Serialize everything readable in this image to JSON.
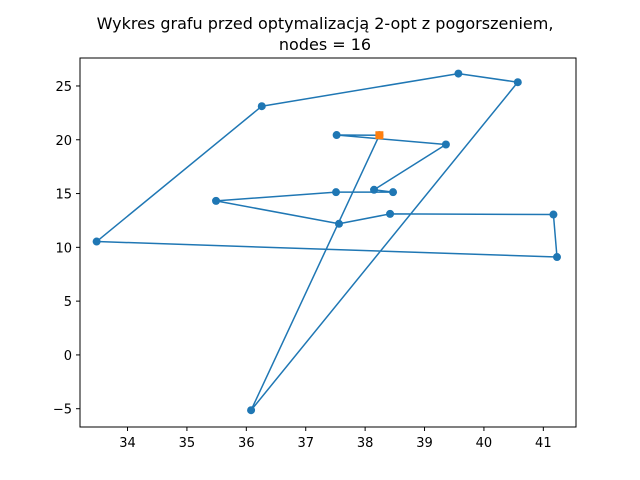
{
  "chart_data": {
    "type": "line",
    "title": "Wykres grafu przed optymalizacją 2-opt z pogorszeniem,",
    "subtitle": "nodes = 16",
    "xlabel": "",
    "ylabel": "",
    "xlim": [
      33.2,
      41.55
    ],
    "ylim": [
      -6.7,
      27.6
    ],
    "xticks": [
      34,
      35,
      36,
      37,
      38,
      39,
      40,
      41
    ],
    "yticks": [
      -5,
      0,
      5,
      10,
      15,
      20,
      25
    ],
    "grid": false,
    "series": [
      {
        "color": "#1f77b4",
        "marker": "circle",
        "path": [
          [
            38.24,
            20.42
          ],
          [
            36.08,
            -5.14
          ],
          [
            40.57,
            25.35
          ],
          [
            39.57,
            26.15
          ],
          [
            36.26,
            23.12
          ],
          [
            33.48,
            10.54
          ],
          [
            41.23,
            9.1
          ],
          [
            41.17,
            13.05
          ],
          [
            38.42,
            13.11
          ],
          [
            37.56,
            12.19
          ],
          [
            35.49,
            14.32
          ],
          [
            37.51,
            15.13
          ],
          [
            38.47,
            15.13
          ],
          [
            38.15,
            15.35
          ],
          [
            39.36,
            19.56
          ],
          [
            37.52,
            20.44
          ],
          [
            38.24,
            20.42
          ]
        ]
      }
    ],
    "start_point": {
      "x": 38.24,
      "y": 20.42,
      "color": "#ff7f0e",
      "marker": "square"
    }
  }
}
